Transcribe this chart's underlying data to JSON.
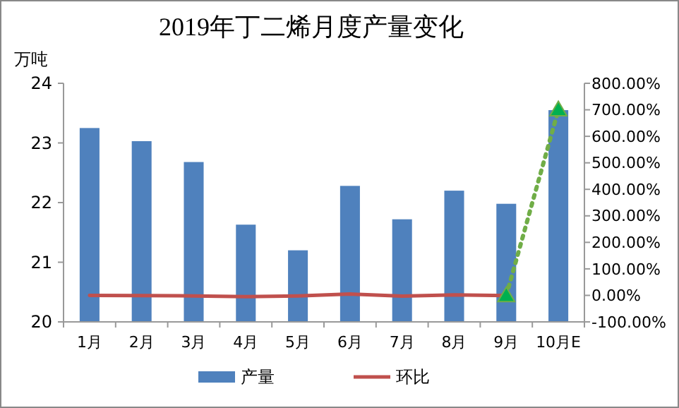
{
  "chart_data": {
    "type": "bar",
    "title": "2019年丁二烯月度产量变化",
    "ylabel": "万吨",
    "categories": [
      "1月",
      "2月",
      "3月",
      "4月",
      "5月",
      "6月",
      "7月",
      "8月",
      "9月",
      "10月E"
    ],
    "series": [
      {
        "name": "产量",
        "color": "#4f81bd",
        "values": [
          23.25,
          23.03,
          22.68,
          21.63,
          21.2,
          22.28,
          21.72,
          22.2,
          21.98,
          23.55
        ]
      },
      {
        "name": "环比",
        "type": "line",
        "axis": "y2",
        "color": "#c0504d",
        "values": [
          0,
          -1,
          -2,
          -5,
          -2,
          5,
          -3,
          2,
          -1,
          null
        ]
      },
      {
        "type": "line",
        "axis": "y2",
        "color": "#70ad47",
        "line_style": "dotted",
        "marker": "triangle",
        "values": [
          null,
          null,
          null,
          null,
          null,
          null,
          null,
          null,
          -1,
          700
        ]
      }
    ],
    "ylim": [
      20,
      24
    ],
    "yticks": [
      20,
      21,
      22,
      23,
      24
    ],
    "y2lim": [
      -100,
      800
    ],
    "y2ticks": [
      {
        "value": -100,
        "label": "-100.00%"
      },
      {
        "value": 0,
        "label": "0.00%"
      },
      {
        "value": 100,
        "label": "100.00%"
      },
      {
        "value": 200,
        "label": "200.00%"
      },
      {
        "value": 300,
        "label": "300.00%"
      },
      {
        "value": 400,
        "label": "400.00%"
      },
      {
        "value": 500,
        "label": "500.00%"
      },
      {
        "value": 600,
        "label": "600.00%"
      },
      {
        "value": 700,
        "label": "700.00%"
      },
      {
        "value": 800,
        "label": "800.00%"
      }
    ],
    "legend": "bottom"
  }
}
